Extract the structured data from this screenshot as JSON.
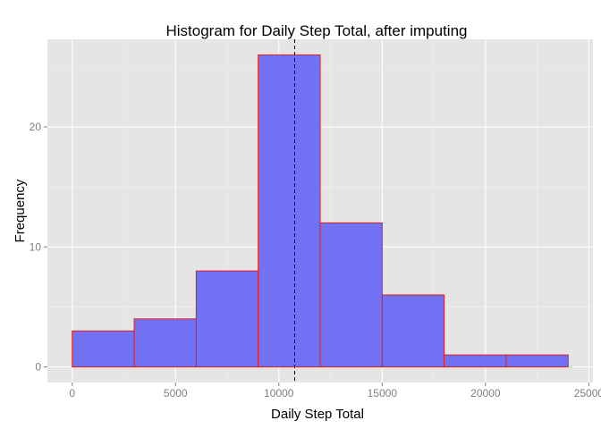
{
  "chart_data": {
    "type": "bar",
    "title": "Histogram for Daily Step Total, after imputing",
    "xlabel": "Daily Step Total",
    "ylabel": "Frequency",
    "bins": [
      {
        "x0": 0,
        "x1": 3000,
        "count": 3
      },
      {
        "x0": 3000,
        "x1": 6000,
        "count": 4
      },
      {
        "x0": 6000,
        "x1": 9000,
        "count": 8
      },
      {
        "x0": 9000,
        "x1": 12000,
        "count": 26
      },
      {
        "x0": 12000,
        "x1": 15000,
        "count": 12
      },
      {
        "x0": 15000,
        "x1": 18000,
        "count": 6
      },
      {
        "x0": 18000,
        "x1": 21000,
        "count": 1
      },
      {
        "x0": 21000,
        "x1": 24000,
        "count": 1
      }
    ],
    "mean_line": 10766,
    "xlim": [
      -1200,
      25200
    ],
    "ylim": [
      -1.3,
      27.3
    ],
    "xticks": [
      0,
      5000,
      10000,
      15000,
      20000,
      25000
    ],
    "xtick_labels": [
      "0",
      "5000",
      "10000",
      "15000",
      "20000",
      "25000"
    ],
    "yticks": [
      0,
      10,
      20
    ],
    "ytick_labels": [
      "0",
      "10",
      "20"
    ],
    "grid": true,
    "colors": {
      "panel": "#e5e5e5",
      "grid_major": "#ffffff",
      "grid_minor": "#f2f2f2",
      "bar_fill": "#7371f3",
      "bar_stroke": "#e31a1c",
      "mean_line": "#000000"
    }
  }
}
